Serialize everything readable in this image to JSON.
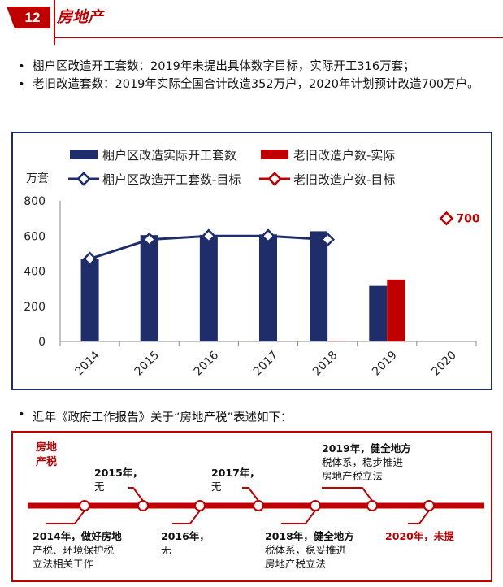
{
  "header": {
    "number": "12",
    "title": "房地产"
  },
  "bullets": [
    "棚户区改造开工套数：2019年未提出具体数字目标，实际开工316万套；",
    "老旧改造套数：2019年实际全国合计改造352万户，2020年计划预计改造700万户。"
  ],
  "colors": {
    "navy": "#1f2d6b",
    "red": "#c00000"
  },
  "chart_data": {
    "type": "bar",
    "ylabel": "万套",
    "ylim": [
      0,
      800
    ],
    "yticks": [
      "0",
      "200",
      "400",
      "600",
      "800"
    ],
    "categories": [
      "2014",
      "2015",
      "2016",
      "2017",
      "2018",
      "2019",
      "2020"
    ],
    "legend": [
      {
        "name": "棚户区改造实际开工套数",
        "style": "bar",
        "color": "#1f2d6b"
      },
      {
        "name": "老旧改造户数-实际",
        "style": "bar",
        "color": "#c00000"
      },
      {
        "name": "棚户区改造开工套数-目标",
        "style": "line",
        "color": "#1f2d6b"
      },
      {
        "name": "老旧改造户数-目标",
        "style": "line",
        "color": "#c00000"
      }
    ],
    "series": [
      {
        "name": "棚户区改造实际开工套数",
        "values": [
          470,
          605,
          606,
          609,
          627,
          316,
          null
        ]
      },
      {
        "name": "老旧改造户数-实际",
        "values": [
          null,
          null,
          null,
          null,
          2,
          352,
          null
        ]
      },
      {
        "name": "棚户区改造开工套数-目标",
        "values": [
          470,
          580,
          600,
          600,
          580,
          null,
          null
        ]
      },
      {
        "name": "老旧改造户数-目标",
        "values": [
          null,
          null,
          null,
          null,
          null,
          null,
          700
        ]
      }
    ],
    "annotation": "700"
  },
  "bullet3": "近年《政府工作报告》关于“房地产税”表述如下：",
  "timeline": {
    "label_lines": [
      "房地",
      "产税"
    ],
    "events": [
      {
        "lines": [
          "2014年，做好房地",
          "产税、环境保护税",
          "立法相关工作"
        ],
        "highlight": false
      },
      {
        "lines": [
          "2015年，",
          "无"
        ],
        "highlight": false
      },
      {
        "lines": [
          "2016年，",
          "无"
        ],
        "highlight": false
      },
      {
        "lines": [
          "2017年，",
          "无"
        ],
        "highlight": false
      },
      {
        "lines": [
          "2018年，健全地方",
          "税体系，稳妥推进",
          "房地产税立法"
        ],
        "highlight": false
      },
      {
        "lines": [
          "2019年，健全地方",
          "税体系，稳步推进",
          "房地产税立法"
        ],
        "highlight": false
      },
      {
        "lines": [
          "2020年，未提"
        ],
        "highlight": true
      }
    ]
  }
}
